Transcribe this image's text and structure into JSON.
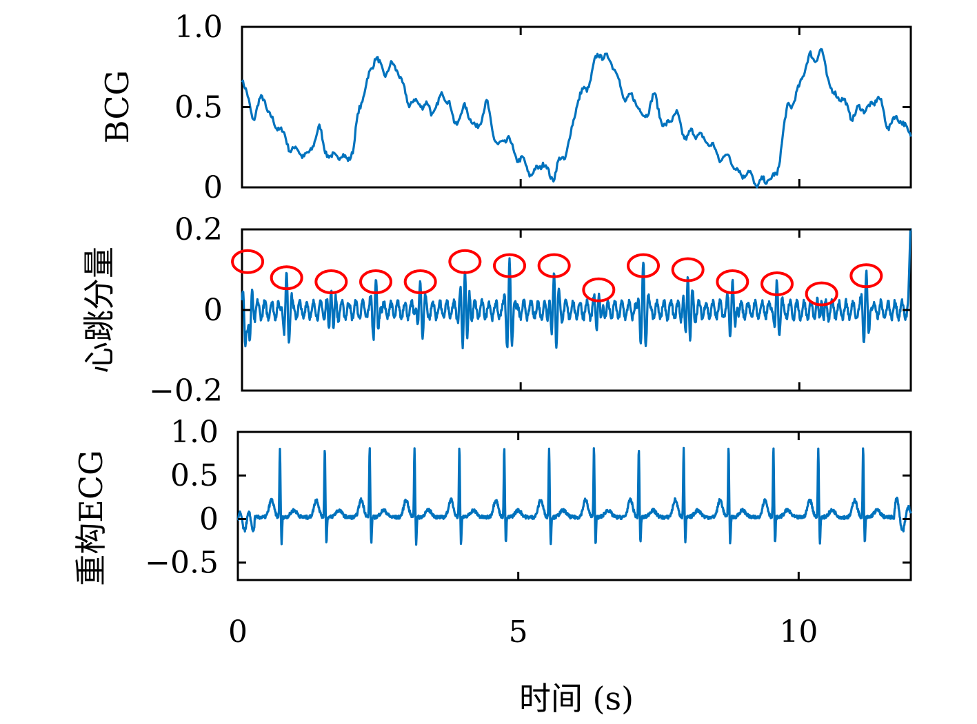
{
  "colors": {
    "series": "#0072BD",
    "marker": "#FF0000",
    "axis": "#000000"
  },
  "xlabel": "时间 (s)",
  "x_ticks": [
    "0",
    "5",
    "10"
  ],
  "chart_data": [
    {
      "type": "line",
      "name": "bcg-panel",
      "ylabel": "BCG",
      "xlim": [
        0,
        12
      ],
      "ylim": [
        0,
        1
      ],
      "y_ticks": [
        "0",
        "0.5",
        "1.0"
      ],
      "y_tick_values": [
        0,
        0.5,
        1.0
      ],
      "x": [
        0,
        0.2,
        0.4,
        0.6,
        0.8,
        1.0,
        1.2,
        1.4,
        1.6,
        1.8,
        2.0,
        2.1,
        2.2,
        2.4,
        2.6,
        2.8,
        3.0,
        3.2,
        3.4,
        3.6,
        3.8,
        4.0,
        4.2,
        4.4,
        4.6,
        4.8,
        5.0,
        5.2,
        5.4,
        5.6,
        5.8,
        6.0,
        6.2,
        6.4,
        6.6,
        6.8,
        7.0,
        7.2,
        7.4,
        7.6,
        7.8,
        8.0,
        8.2,
        8.4,
        8.6,
        8.8,
        9.0,
        9.2,
        9.4,
        9.6,
        9.8,
        10.0,
        10.2,
        10.4,
        10.6,
        10.8,
        11.0,
        11.2,
        11.4,
        11.6,
        11.8,
        12.0
      ],
      "values": [
        0.67,
        0.45,
        0.55,
        0.38,
        0.3,
        0.2,
        0.22,
        0.35,
        0.17,
        0.2,
        0.2,
        0.5,
        0.62,
        0.8,
        0.72,
        0.75,
        0.5,
        0.55,
        0.45,
        0.6,
        0.42,
        0.48,
        0.38,
        0.5,
        0.25,
        0.3,
        0.15,
        0.1,
        0.13,
        0.08,
        0.2,
        0.5,
        0.65,
        0.82,
        0.82,
        0.6,
        0.55,
        0.45,
        0.55,
        0.38,
        0.45,
        0.3,
        0.35,
        0.25,
        0.2,
        0.15,
        0.08,
        0.05,
        0.02,
        0.1,
        0.5,
        0.62,
        0.83,
        0.82,
        0.6,
        0.52,
        0.45,
        0.5,
        0.55,
        0.4,
        0.42,
        0.35
      ],
      "series": [
        {
          "name": ""
        }
      ]
    },
    {
      "type": "line",
      "name": "heartbeat-panel",
      "ylabel": "心跳分量",
      "xlim": [
        0,
        12
      ],
      "ylim": [
        -0.2,
        0.2
      ],
      "y_ticks": [
        "−0.2",
        "0",
        "0.2"
      ],
      "y_tick_values": [
        -0.2,
        0,
        0.2
      ],
      "peaks_x": [
        0.1,
        0.8,
        1.6,
        2.4,
        3.2,
        4.0,
        4.8,
        5.6,
        6.4,
        7.2,
        8.0,
        8.8,
        9.6,
        10.4,
        11.2
      ],
      "peaks_y": [
        0.12,
        0.08,
        0.07,
        0.07,
        0.07,
        0.12,
        0.11,
        0.11,
        0.05,
        0.11,
        0.1,
        0.07,
        0.065,
        0.04,
        0.085
      ],
      "series": [
        {
          "name": ""
        }
      ]
    },
    {
      "type": "line",
      "name": "ecg-panel",
      "ylabel": "重构ECG",
      "xlim": [
        0,
        12
      ],
      "ylim": [
        -0.7,
        1.0
      ],
      "y_ticks": [
        "−0.5",
        "0",
        "0.5",
        "1.0"
      ],
      "y_tick_values": [
        -0.5,
        0,
        0.5,
        1.0
      ],
      "r_peaks_x": [
        0.75,
        1.55,
        2.35,
        3.15,
        3.95,
        4.75,
        5.55,
        6.35,
        7.15,
        7.95,
        8.75,
        9.55,
        10.35,
        11.15
      ],
      "r_peak_value": 0.8,
      "series": [
        {
          "name": ""
        }
      ]
    }
  ]
}
